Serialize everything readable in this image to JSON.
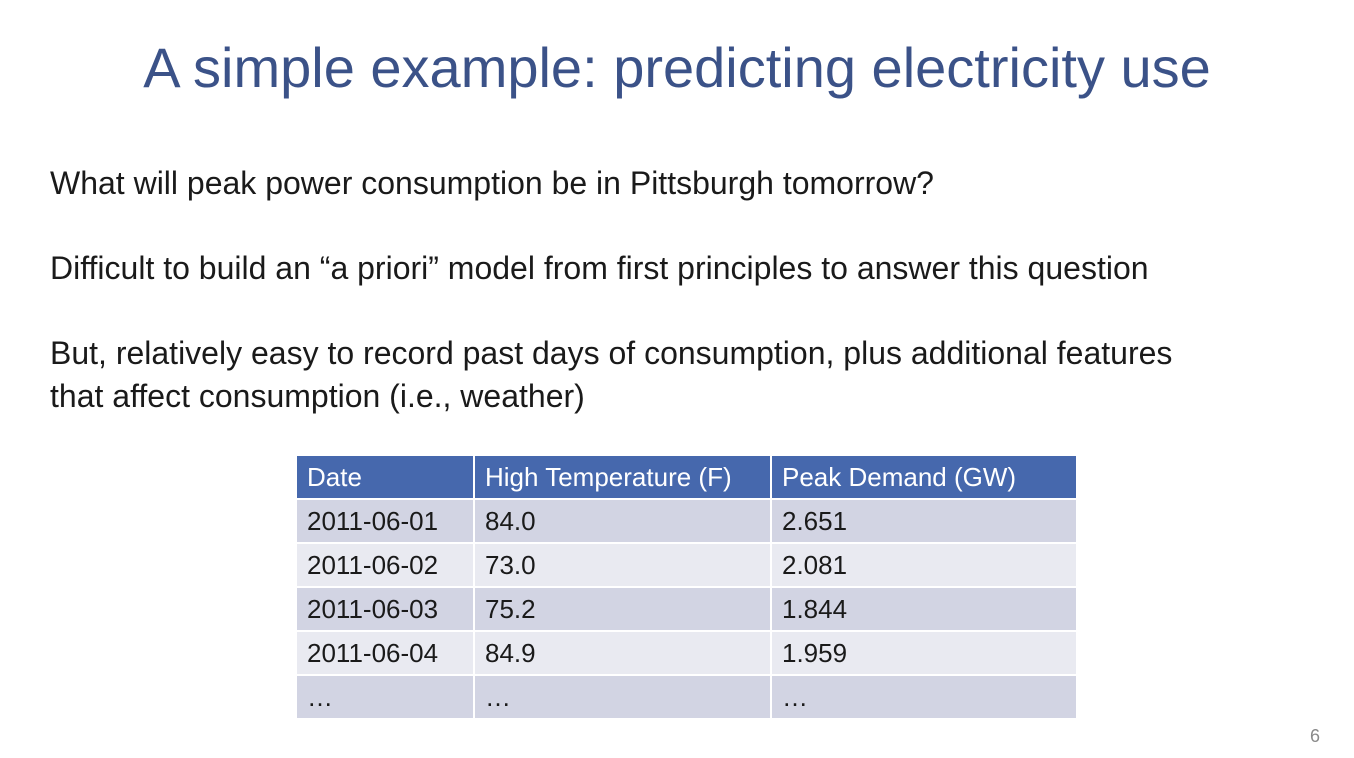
{
  "slide": {
    "title": "A simple example: predicting electricity use",
    "paragraphs": [
      "What will peak power consumption be in Pittsburgh tomorrow?",
      "Difficult to build an “a priori” model from first principles to answer this question",
      "But, relatively easy to record past days of consumption, plus additional features",
      "that affect consumption (i.e., weather)"
    ],
    "page_number": "6"
  },
  "table": {
    "headers": [
      "Date",
      "High Temperature (F)",
      "Peak Demand (GW)"
    ],
    "rows": [
      [
        "2011-06-01",
        "84.0",
        "2.651"
      ],
      [
        "2011-06-02",
        "73.0",
        "2.081"
      ],
      [
        "2011-06-03",
        "75.2",
        "1.844"
      ],
      [
        "2011-06-04",
        "84.9",
        "1.959"
      ],
      [
        "…",
        "…",
        "…"
      ]
    ]
  },
  "colors": {
    "title": "#3b5288",
    "header_fill": "#4668ad",
    "row_fill_odd": "#d2d4e3",
    "row_fill_even": "#e9eaf1"
  }
}
